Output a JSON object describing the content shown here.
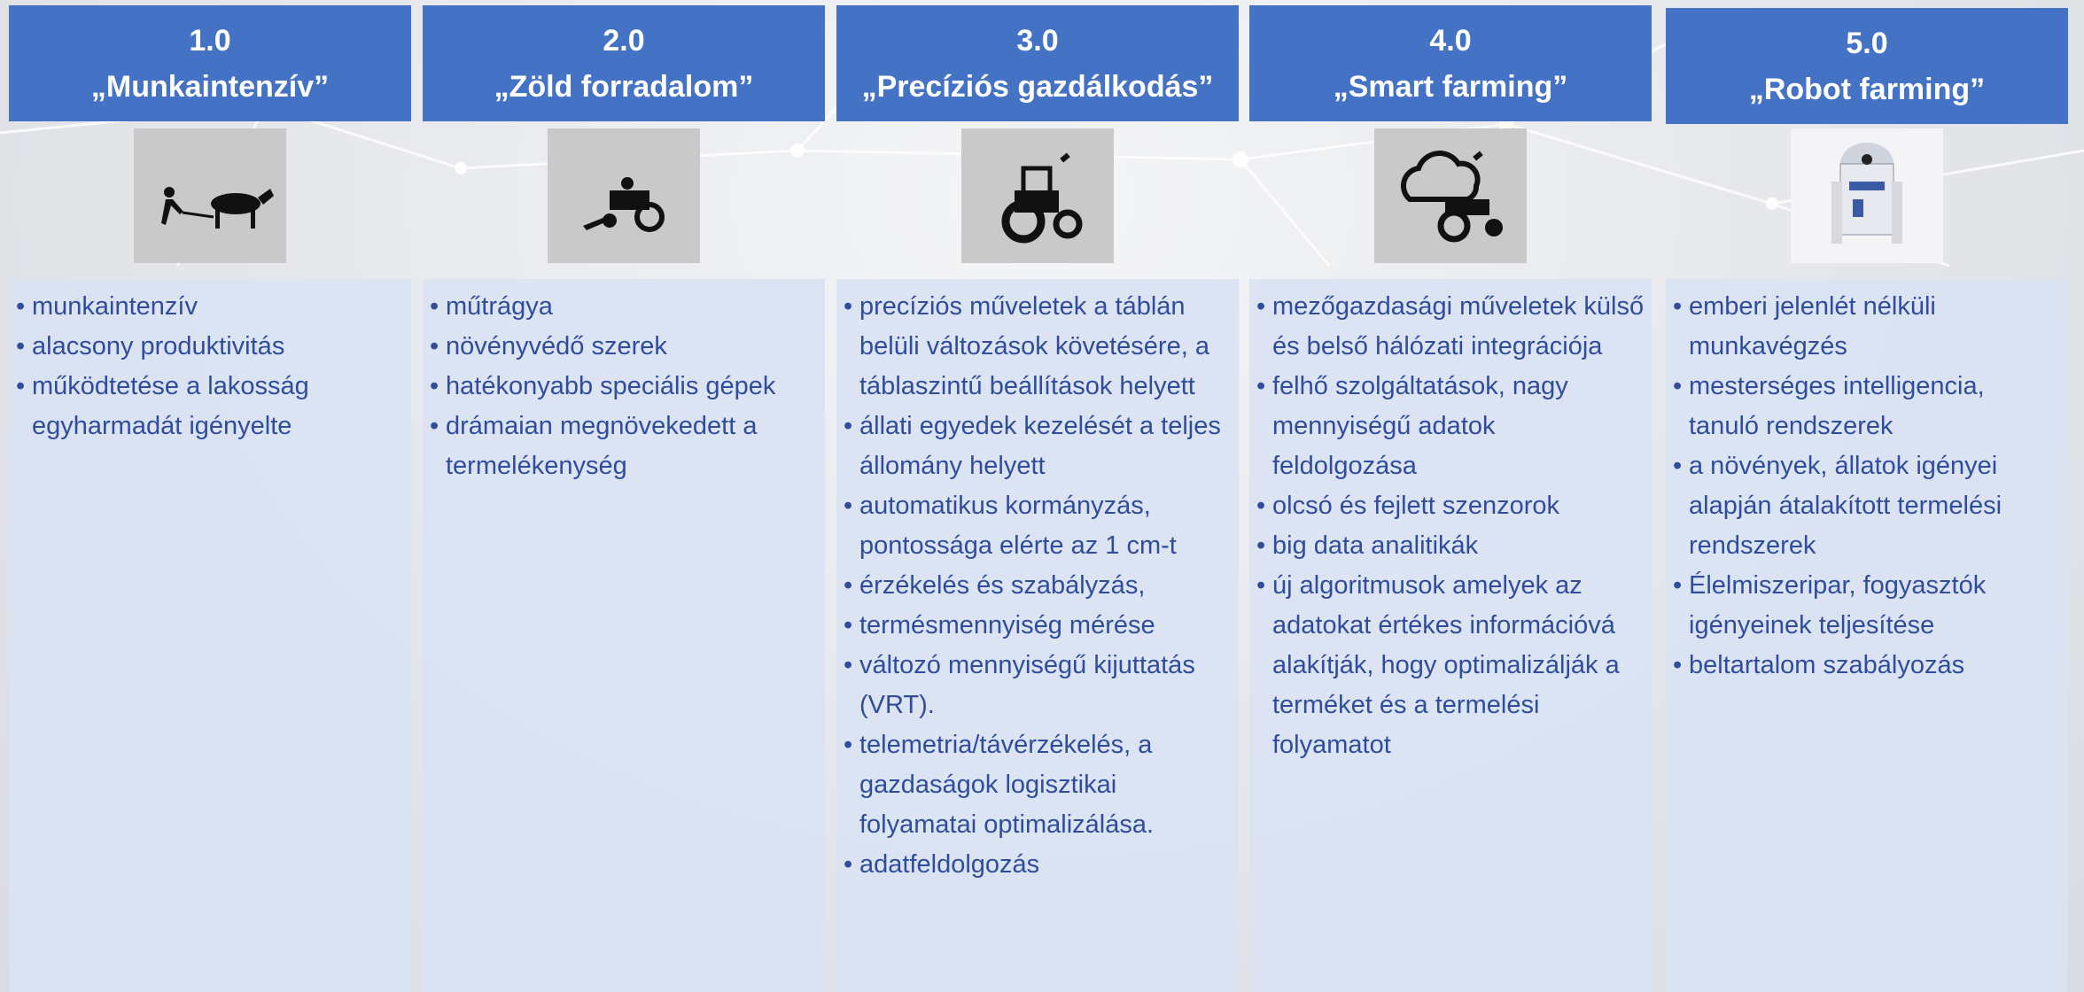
{
  "columns": [
    {
      "number": "1.0",
      "title": "„Munkaintenzív”",
      "bullets": [
        "munkaintenzív",
        "alacsony produktivitás",
        "működtetése a lakosság egyharmadát igényelte"
      ]
    },
    {
      "number": "2.0",
      "title": "„Zöld forradalom”",
      "bullets": [
        "műtrágya",
        "növényvédő szerek",
        "hatékonyabb speciális gépek",
        "drámaian megnövekedett a termelékenység"
      ]
    },
    {
      "number": "3.0",
      "title": "„Precíziós gazdálkodás”",
      "bullets": [
        "precíziós műveletek  a táblán belüli változások követésére, a táblaszintű beállítások helyett",
        "állati egyedek kezelését a teljes állomány helyett",
        "automatikus kormányzás, pontossága elérte az 1 cm-t",
        "érzékelés és szabályzás,",
        "termésmennyiség mérése",
        "változó mennyiségű kijuttatás (VRT).",
        "telemetria/távérzékelés, a gazdaságok logisztikai folyamatai optimalizálása.",
        "adatfeldolgozás"
      ]
    },
    {
      "number": "4.0",
      "title": "„Smart farming”",
      "bullets": [
        "mezőgazdasági műveletek külső és belső hálózati integrációja",
        "felhő szolgáltatások, nagy mennyiségű adatok feldolgozása",
        "olcsó és fejlett szenzorok",
        "big data analitikák",
        "új algoritmusok amelyek az adatokat értékes információvá alakítják, hogy optimalizálják a terméket és a termelési folyamatot"
      ]
    },
    {
      "number": "5.0",
      "title": "„Robot farming”",
      "bullets": [
        "emberi jelenlét nélküli munkavégzés",
        "mesterséges intelligencia, tanuló rendszerek",
        "a növények, állatok igényei alapján átalakított termelési rendszerek",
        "Élelmiszeripar, fogyasztók igényeinek teljesítése",
        "beltartalom szabályozás"
      ]
    }
  ]
}
